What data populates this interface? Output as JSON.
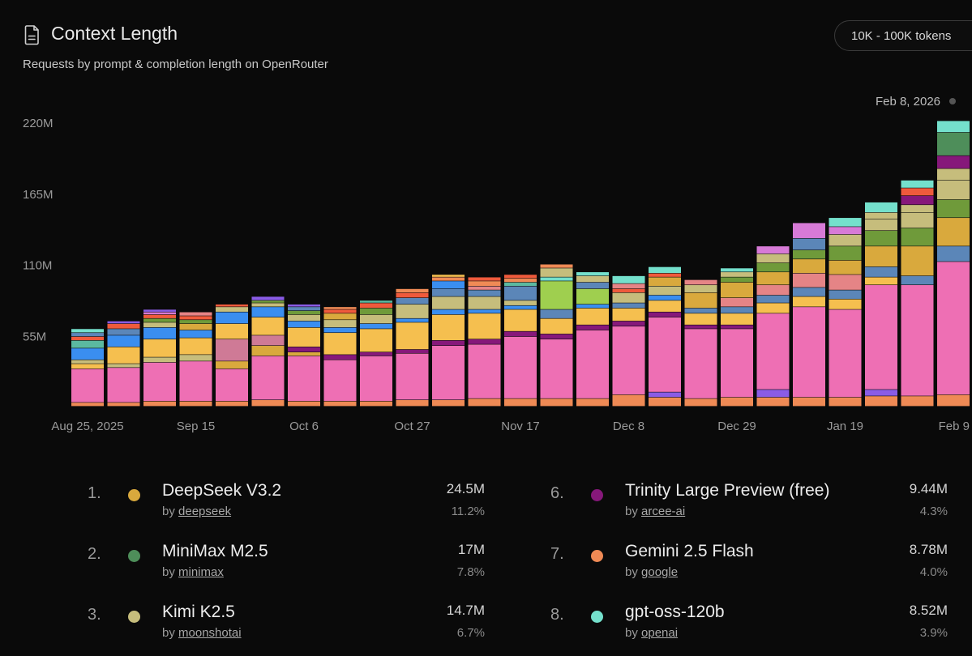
{
  "header": {
    "title": "Context Length",
    "subtitle": "Requests by prompt & completion length on OpenRouter",
    "range_label": "10K - 100K tokens"
  },
  "colors": {
    "pink": "#ee6fb4",
    "orange": "#ef8a55",
    "yellow": "#f5bf4f",
    "mustard": "#d9a93d",
    "khaki": "#c6bd7c",
    "olive": "#6f9a3a",
    "green": "#4e8e5a",
    "purple": "#86187a",
    "violet": "#8a5ce6",
    "blue": "#3a8ef0",
    "steel": "#5b86b8",
    "red": "#ef5a3c",
    "teal": "#5bb9a0",
    "mint": "#74e0cc",
    "lime": "#9fcf4f",
    "mauve": "#d77ad7",
    "salmon": "#e58486",
    "rose": "#cf7a96"
  },
  "chart_data": {
    "type": "bar",
    "stacked": true,
    "title": "Context Length",
    "hover_date": "Feb 8, 2026",
    "ylim": [
      0,
      220
    ],
    "yticks": [
      55,
      110,
      165,
      220
    ],
    "ytick_labels": [
      "55M",
      "110M",
      "165M",
      "220M"
    ],
    "unit": "M requests",
    "xtick_labels": [
      {
        "index": 0,
        "label": "Aug 25, 2025"
      },
      {
        "index": 3,
        "label": "Sep 15"
      },
      {
        "index": 6,
        "label": "Oct 6"
      },
      {
        "index": 9,
        "label": "Oct 27"
      },
      {
        "index": 12,
        "label": "Nov 17"
      },
      {
        "index": 15,
        "label": "Dec 8"
      },
      {
        "index": 18,
        "label": "Dec 29"
      },
      {
        "index": 21,
        "label": "Jan 19"
      },
      {
        "index": 24,
        "label": "Feb 9"
      }
    ],
    "weeks": [
      {
        "segments": [
          [
            "orange",
            3
          ],
          [
            "pink",
            26
          ],
          [
            "yellow",
            4
          ],
          [
            "khaki",
            3
          ],
          [
            "blue",
            9
          ],
          [
            "teal",
            6
          ],
          [
            "red",
            3
          ],
          [
            "steel",
            3
          ],
          [
            "mint",
            3
          ]
        ]
      },
      {
        "segments": [
          [
            "orange",
            3
          ],
          [
            "pink",
            27
          ],
          [
            "khaki",
            3
          ],
          [
            "yellow",
            13
          ],
          [
            "blue",
            9
          ],
          [
            "steel",
            5
          ],
          [
            "red",
            4
          ],
          [
            "violet",
            2
          ]
        ]
      },
      {
        "segments": [
          [
            "orange",
            4
          ],
          [
            "pink",
            30
          ],
          [
            "khaki",
            4
          ],
          [
            "yellow",
            14
          ],
          [
            "blue",
            9
          ],
          [
            "khaki",
            4
          ],
          [
            "olive",
            3
          ],
          [
            "red",
            3
          ],
          [
            "mauve",
            2
          ],
          [
            "violet",
            2
          ]
        ]
      },
      {
        "segments": [
          [
            "orange",
            4
          ],
          [
            "pink",
            31
          ],
          [
            "khaki",
            5
          ],
          [
            "yellow",
            13
          ],
          [
            "blue",
            6
          ],
          [
            "mustard",
            5
          ],
          [
            "olive",
            3
          ],
          [
            "red",
            3
          ],
          [
            "salmon",
            3
          ]
        ]
      },
      {
        "segments": [
          [
            "orange",
            4
          ],
          [
            "pink",
            25
          ],
          [
            "mustard",
            6
          ],
          [
            "rose",
            17
          ],
          [
            "yellow",
            12
          ],
          [
            "blue",
            9
          ],
          [
            "khaki",
            4
          ],
          [
            "red",
            2
          ]
        ]
      },
      {
        "segments": [
          [
            "orange",
            5
          ],
          [
            "pink",
            34
          ],
          [
            "mustard",
            8
          ],
          [
            "rose",
            8
          ],
          [
            "yellow",
            14
          ],
          [
            "blue",
            8
          ],
          [
            "khaki",
            3
          ],
          [
            "olive",
            2
          ],
          [
            "violet",
            3
          ]
        ]
      },
      {
        "segments": [
          [
            "orange",
            4
          ],
          [
            "pink",
            35
          ],
          [
            "mustard",
            3
          ],
          [
            "purple",
            4
          ],
          [
            "yellow",
            15
          ],
          [
            "blue",
            5
          ],
          [
            "khaki",
            5
          ],
          [
            "olive",
            3
          ],
          [
            "steel",
            3
          ],
          [
            "violet",
            2
          ]
        ]
      },
      {
        "segments": [
          [
            "orange",
            4
          ],
          [
            "pink",
            32
          ],
          [
            "purple",
            4
          ],
          [
            "yellow",
            17
          ],
          [
            "blue",
            4
          ],
          [
            "khaki",
            6
          ],
          [
            "mustard",
            5
          ],
          [
            "red",
            3
          ],
          [
            "orange",
            2
          ]
        ]
      },
      {
        "segments": [
          [
            "orange",
            4
          ],
          [
            "pink",
            35
          ],
          [
            "purple",
            3
          ],
          [
            "yellow",
            18
          ],
          [
            "blue",
            4
          ],
          [
            "khaki",
            7
          ],
          [
            "olive",
            5
          ],
          [
            "red",
            4
          ],
          [
            "teal",
            2
          ]
        ]
      },
      {
        "segments": [
          [
            "orange",
            5
          ],
          [
            "pink",
            36
          ],
          [
            "purple",
            3
          ],
          [
            "yellow",
            21
          ],
          [
            "blue",
            3
          ],
          [
            "khaki",
            11
          ],
          [
            "steel",
            5
          ],
          [
            "red",
            4
          ],
          [
            "orange",
            3
          ]
        ]
      },
      {
        "segments": [
          [
            "orange",
            5
          ],
          [
            "pink",
            42
          ],
          [
            "purple",
            4
          ],
          [
            "yellow",
            20
          ],
          [
            "blue",
            4
          ],
          [
            "khaki",
            10
          ],
          [
            "steel",
            6
          ],
          [
            "blue",
            6
          ],
          [
            "orange",
            3
          ],
          [
            "yellow",
            2
          ]
        ]
      },
      {
        "segments": [
          [
            "orange",
            6
          ],
          [
            "pink",
            42
          ],
          [
            "purple",
            4
          ],
          [
            "yellow",
            20
          ],
          [
            "blue",
            3
          ],
          [
            "khaki",
            10
          ],
          [
            "steel",
            5
          ],
          [
            "salmon",
            3
          ],
          [
            "orange",
            4
          ],
          [
            "red",
            3
          ]
        ]
      },
      {
        "segments": [
          [
            "orange",
            6
          ],
          [
            "pink",
            48
          ],
          [
            "purple",
            4
          ],
          [
            "yellow",
            17
          ],
          [
            "blue",
            3
          ],
          [
            "khaki",
            4
          ],
          [
            "steel",
            11
          ],
          [
            "teal",
            3
          ],
          [
            "orange",
            3
          ],
          [
            "red",
            3
          ]
        ]
      },
      {
        "segments": [
          [
            "orange",
            6
          ],
          [
            "pink",
            46
          ],
          [
            "purple",
            4
          ],
          [
            "yellow",
            12
          ],
          [
            "steel",
            7
          ],
          [
            "lime",
            22
          ],
          [
            "mint",
            3
          ],
          [
            "khaki",
            7
          ],
          [
            "orange",
            3
          ]
        ]
      },
      {
        "segments": [
          [
            "orange",
            6
          ],
          [
            "pink",
            53
          ],
          [
            "purple",
            4
          ],
          [
            "yellow",
            13
          ],
          [
            "blue",
            3
          ],
          [
            "lime",
            12
          ],
          [
            "steel",
            5
          ],
          [
            "khaki",
            5
          ],
          [
            "mint",
            3
          ]
        ]
      },
      {
        "segments": [
          [
            "orange",
            9
          ],
          [
            "pink",
            53
          ],
          [
            "purple",
            4
          ],
          [
            "yellow",
            10
          ],
          [
            "steel",
            4
          ],
          [
            "khaki",
            8
          ],
          [
            "red",
            3
          ],
          [
            "salmon",
            4
          ],
          [
            "mint",
            6
          ]
        ]
      },
      {
        "segments": [
          [
            "orange",
            7
          ],
          [
            "violet",
            4
          ],
          [
            "pink",
            58
          ],
          [
            "purple",
            4
          ],
          [
            "yellow",
            9
          ],
          [
            "blue",
            4
          ],
          [
            "khaki",
            7
          ],
          [
            "mustard",
            7
          ],
          [
            "red",
            3
          ],
          [
            "mint",
            5
          ]
        ]
      },
      {
        "segments": [
          [
            "orange",
            6
          ],
          [
            "pink",
            54
          ],
          [
            "purple",
            3
          ],
          [
            "yellow",
            9
          ],
          [
            "steel",
            4
          ],
          [
            "mustard",
            12
          ],
          [
            "khaki",
            6
          ],
          [
            "salmon",
            4
          ]
        ]
      },
      {
        "segments": [
          [
            "orange",
            7
          ],
          [
            "pink",
            53
          ],
          [
            "purple",
            3
          ],
          [
            "yellow",
            9
          ],
          [
            "steel",
            5
          ],
          [
            "salmon",
            7
          ],
          [
            "mustard",
            12
          ],
          [
            "olive",
            4
          ],
          [
            "khaki",
            4
          ],
          [
            "mint",
            3
          ]
        ]
      },
      {
        "segments": [
          [
            "orange",
            7
          ],
          [
            "violet",
            6
          ],
          [
            "pink",
            59
          ],
          [
            "yellow",
            8
          ],
          [
            "steel",
            6
          ],
          [
            "salmon",
            8
          ],
          [
            "mustard",
            10
          ],
          [
            "olive",
            7
          ],
          [
            "khaki",
            7
          ],
          [
            "mauve",
            6
          ]
        ]
      },
      {
        "segments": [
          [
            "orange",
            7
          ],
          [
            "pink",
            70
          ],
          [
            "yellow",
            8
          ],
          [
            "steel",
            7
          ],
          [
            "salmon",
            11
          ],
          [
            "mustard",
            11
          ],
          [
            "olive",
            7
          ],
          [
            "steel",
            9
          ],
          [
            "mauve",
            12
          ]
        ]
      },
      {
        "segments": [
          [
            "orange",
            7
          ],
          [
            "pink",
            68
          ],
          [
            "yellow",
            8
          ],
          [
            "steel",
            7
          ],
          [
            "salmon",
            12
          ],
          [
            "mustard",
            11
          ],
          [
            "olive",
            11
          ],
          [
            "khaki",
            9
          ],
          [
            "mauve",
            6
          ],
          [
            "mint",
            7
          ]
        ]
      },
      {
        "segments": [
          [
            "orange",
            8
          ],
          [
            "violet",
            5
          ],
          [
            "pink",
            81
          ],
          [
            "yellow",
            6
          ],
          [
            "steel",
            8
          ],
          [
            "mustard",
            16
          ],
          [
            "olive",
            12
          ],
          [
            "khaki",
            9
          ],
          [
            "khaki",
            5
          ],
          [
            "mint",
            8
          ]
        ]
      },
      {
        "segments": [
          [
            "orange",
            8
          ],
          [
            "pink",
            86
          ],
          [
            "steel",
            7
          ],
          [
            "mustard",
            23
          ],
          [
            "olive",
            14
          ],
          [
            "khaki",
            12
          ],
          [
            "khaki",
            6
          ],
          [
            "purple",
            7
          ],
          [
            "red",
            6
          ],
          [
            "mint",
            6
          ]
        ]
      },
      {
        "segments": [
          [
            "orange",
            9
          ],
          [
            "pink",
            103
          ],
          [
            "steel",
            12
          ],
          [
            "mustard",
            22
          ],
          [
            "olive",
            14
          ],
          [
            "khaki",
            15
          ],
          [
            "khaki",
            9
          ],
          [
            "purple",
            10
          ],
          [
            "green",
            18
          ],
          [
            "mint",
            9
          ]
        ]
      }
    ]
  },
  "legend": [
    {
      "rank": "1.",
      "name": "DeepSeek V3.2",
      "by": "by",
      "author": "deepseek",
      "count": "24.5M",
      "pct": "11.2%",
      "color": "#d9a93d"
    },
    {
      "rank": "2.",
      "name": "MiniMax M2.5",
      "by": "by",
      "author": "minimax",
      "count": "17M",
      "pct": "7.8%",
      "color": "#4e8e5a"
    },
    {
      "rank": "3.",
      "name": "Kimi K2.5",
      "by": "by",
      "author": "moonshotai",
      "count": "14.7M",
      "pct": "6.7%",
      "color": "#c6bd7c"
    },
    {
      "rank": "6.",
      "name": "Trinity Large Preview (free)",
      "by": "by",
      "author": "arcee-ai",
      "count": "9.44M",
      "pct": "4.3%",
      "color": "#86187a"
    },
    {
      "rank": "7.",
      "name": "Gemini 2.5 Flash",
      "by": "by",
      "author": "google",
      "count": "8.78M",
      "pct": "4.0%",
      "color": "#ef8a55"
    },
    {
      "rank": "8.",
      "name": "gpt-oss-120b",
      "by": "by",
      "author": "openai",
      "count": "8.52M",
      "pct": "3.9%",
      "color": "#74e0cc"
    }
  ]
}
